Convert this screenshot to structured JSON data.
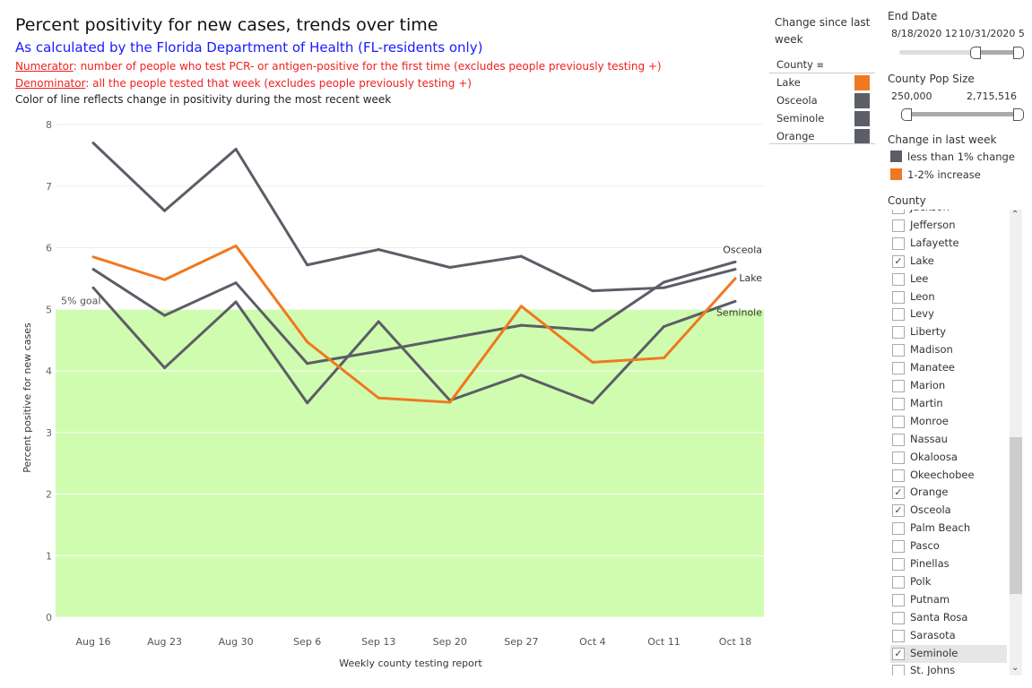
{
  "header": {
    "title": "Percent positivity for new cases, trends over time",
    "subtitle": "As calculated by the Florida Department of Health (FL-residents only)",
    "numerator_label": "Numerator",
    "numerator_text": ": number of people who test PCR- or antigen-positive for the first time (excludes people previously testing +)",
    "denominator_label": "Denominator",
    "denominator_text": ": all the people tested that week (excludes people previously testing +)",
    "note": "Color of line reflects change in positivity during the most recent week"
  },
  "colors": {
    "gray": "#5b5e66",
    "orange": "#f07820",
    "goal_fill": "#d0fcb0"
  },
  "chart_data": {
    "type": "line",
    "xlabel": "Weekly county testing report",
    "ylabel": "Percent positive for new cases",
    "categories": [
      "Aug 16",
      "Aug 23",
      "Aug 30",
      "Sep 6",
      "Sep 13",
      "Sep 20",
      "Sep 27",
      "Oct 4",
      "Oct 11",
      "Oct 18"
    ],
    "ylim": [
      0,
      8
    ],
    "yticks": [
      0,
      1,
      2,
      3,
      4,
      5,
      6,
      7,
      8
    ],
    "grid": true,
    "goal": {
      "value": 5,
      "label": "5% goal"
    },
    "series": [
      {
        "name": "Orange",
        "label": "",
        "color": "#5b5e66",
        "values": [
          7.7,
          6.6,
          7.6,
          5.72,
          5.97,
          5.68,
          5.86,
          5.3,
          5.35,
          5.65
        ]
      },
      {
        "name": "Osceola",
        "label": "Osceola",
        "color": "#5b5e66",
        "values": [
          5.65,
          4.9,
          5.43,
          4.12,
          4.32,
          4.53,
          4.74,
          4.66,
          5.44,
          5.77
        ]
      },
      {
        "name": "Lake",
        "label": "Lake",
        "color": "#f07820",
        "values": [
          5.85,
          5.48,
          6.03,
          4.47,
          3.56,
          3.49,
          5.05,
          4.14,
          4.21,
          5.5
        ]
      },
      {
        "name": "Seminole",
        "label": "Seminole",
        "color": "#5b5e66",
        "values": [
          5.35,
          4.05,
          5.12,
          3.48,
          4.8,
          3.52,
          3.93,
          3.48,
          4.72,
          5.13
        ]
      }
    ]
  },
  "change_table": {
    "title": "Change since last week",
    "column": "County",
    "rows": [
      {
        "county": "Lake",
        "color": "#f07820"
      },
      {
        "county": "Osceola",
        "color": "#5b5e66"
      },
      {
        "county": "Seminole",
        "color": "#5b5e66"
      },
      {
        "county": "Orange",
        "color": "#5b5e66"
      }
    ]
  },
  "filters": {
    "end_date": {
      "label": "End Date",
      "min": "8/18/2020 12",
      "max": "10/31/2020 5"
    },
    "pop_size": {
      "label": "County Pop Size",
      "min": "250,000",
      "max": "2,715,516"
    },
    "change_legend": {
      "label": "Change in last week",
      "items": [
        {
          "text": "less than 1% change",
          "color": "#5b5e66"
        },
        {
          "text": "1-2% increase",
          "color": "#f07820"
        }
      ]
    },
    "county": {
      "label": "County",
      "items": [
        {
          "name": "Jackson",
          "checked": false
        },
        {
          "name": "Jefferson",
          "checked": false
        },
        {
          "name": "Lafayette",
          "checked": false
        },
        {
          "name": "Lake",
          "checked": true
        },
        {
          "name": "Lee",
          "checked": false
        },
        {
          "name": "Leon",
          "checked": false
        },
        {
          "name": "Levy",
          "checked": false
        },
        {
          "name": "Liberty",
          "checked": false
        },
        {
          "name": "Madison",
          "checked": false
        },
        {
          "name": "Manatee",
          "checked": false
        },
        {
          "name": "Marion",
          "checked": false
        },
        {
          "name": "Martin",
          "checked": false
        },
        {
          "name": "Monroe",
          "checked": false
        },
        {
          "name": "Nassau",
          "checked": false
        },
        {
          "name": "Okaloosa",
          "checked": false
        },
        {
          "name": "Okeechobee",
          "checked": false
        },
        {
          "name": "Orange",
          "checked": true
        },
        {
          "name": "Osceola",
          "checked": true
        },
        {
          "name": "Palm Beach",
          "checked": false
        },
        {
          "name": "Pasco",
          "checked": false
        },
        {
          "name": "Pinellas",
          "checked": false
        },
        {
          "name": "Polk",
          "checked": false
        },
        {
          "name": "Putnam",
          "checked": false
        },
        {
          "name": "Santa Rosa",
          "checked": false
        },
        {
          "name": "Sarasota",
          "checked": false
        },
        {
          "name": "Seminole",
          "checked": true,
          "highlighted": true
        },
        {
          "name": "St. Johns",
          "checked": false
        }
      ]
    }
  }
}
